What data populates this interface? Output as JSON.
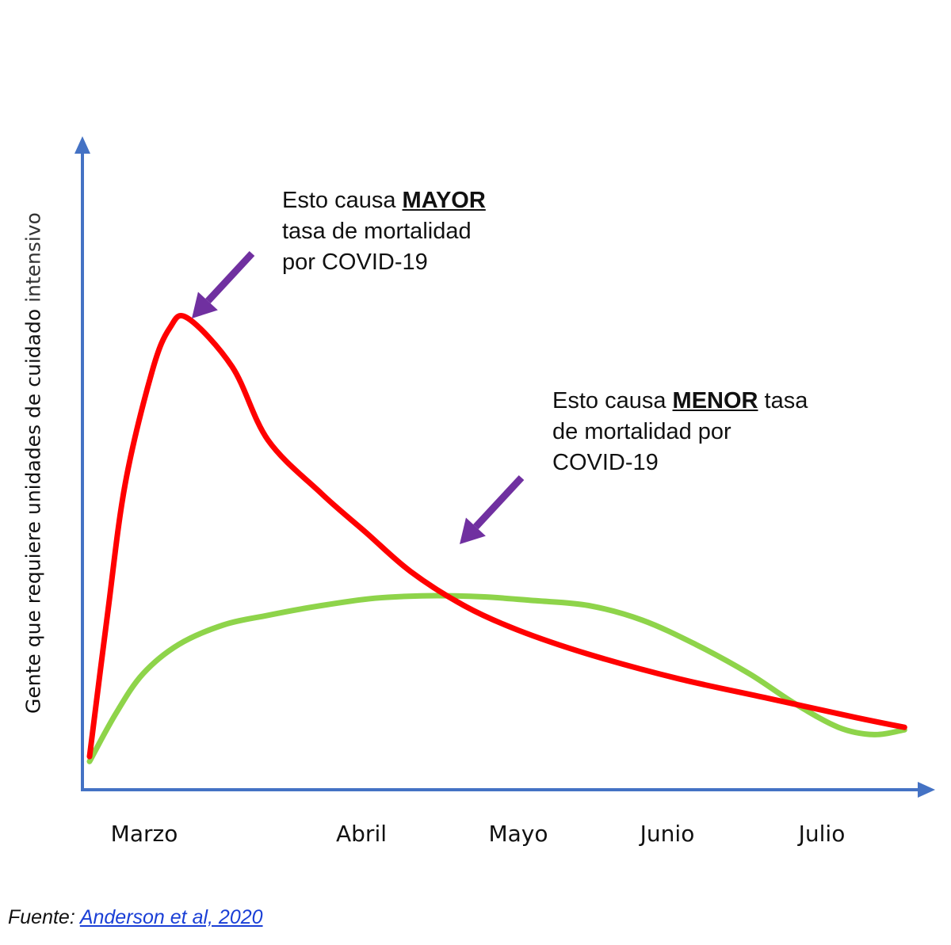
{
  "chart_data": {
    "type": "line",
    "ylabel_main": "Gente que requiere unidades de cuidado",
    "ylabel_tail": "intensivo",
    "xlabel": "",
    "categories": [
      "Marzo",
      "Abril",
      "Mayo",
      "Junio",
      "Julio"
    ],
    "series": [
      {
        "color": "#ff0000",
        "x": [
          0.0,
          0.1,
          0.2,
          0.35,
          0.45,
          0.55,
          0.8,
          1.0,
          1.3,
          1.55,
          1.8,
          2.1,
          2.4,
          2.8,
          3.3,
          3.8,
          4.3,
          4.57
        ],
        "y": [
          0.06,
          0.35,
          0.62,
          0.85,
          0.94,
          0.96,
          0.86,
          0.71,
          0.6,
          0.52,
          0.44,
          0.37,
          0.32,
          0.27,
          0.22,
          0.18,
          0.14,
          0.12
        ]
      },
      {
        "color": "#8ed44a",
        "x": [
          0.0,
          0.15,
          0.3,
          0.5,
          0.75,
          1.0,
          1.3,
          1.6,
          1.9,
          2.2,
          2.5,
          2.8,
          3.1,
          3.4,
          3.7,
          3.95,
          4.2,
          4.4,
          4.57
        ],
        "y": [
          0.05,
          0.15,
          0.23,
          0.29,
          0.33,
          0.35,
          0.37,
          0.385,
          0.39,
          0.388,
          0.38,
          0.37,
          0.34,
          0.29,
          0.23,
          0.17,
          0.12,
          0.105,
          0.115
        ]
      }
    ],
    "annotations": [
      {
        "pre": "Esto causa ",
        "bold": "MAYOR",
        "lines": [
          "tasa de mortalidad",
          "por COVID-19"
        ]
      },
      {
        "pre": "Esto causa ",
        "bold": "MENOR",
        "post": " tasa",
        "lines": [
          "de mortalidad por",
          "COVID-19"
        ]
      }
    ],
    "colors": {
      "axis": "#4472c4",
      "arrow": "#7030a0"
    }
  },
  "source": {
    "label": "Fuente:",
    "link": "Anderson et al, 2020"
  }
}
